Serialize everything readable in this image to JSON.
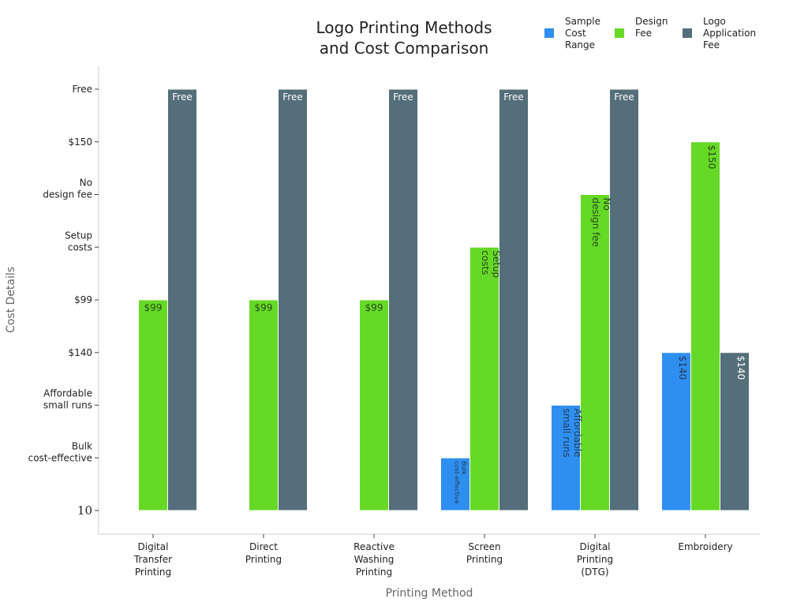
{
  "chart_data": {
    "type": "bar",
    "title": [
      "Logo Printing Methods",
      "and Cost Comparison"
    ],
    "xlabel": "Printing Method",
    "ylabel": "Cost Details",
    "y_categories": [
      "10",
      "Bulk\ncost-effective",
      "Affordable\nsmall runs",
      "$140",
      "$99",
      "Setup\ncosts",
      "No\ndesign fee",
      "$150",
      "Free"
    ],
    "categories": [
      "Digital\nTransfer\nPrinting",
      "Direct\nPrinting",
      "Reactive\nWashing\nPrinting",
      "Screen\nPrinting",
      "Digital\nPrinting\n(DTG)",
      "Embroidery"
    ],
    "series": [
      {
        "name": "Sample\nCost\nRange",
        "color": "#2f8ff0",
        "values": [
          null,
          null,
          null,
          "Bulk\ncost-effective",
          "Affordable\nsmall runs",
          "$140"
        ]
      },
      {
        "name": "Design\nFee",
        "color": "#66d926",
        "values": [
          "$99",
          "$99",
          "$99",
          "Setup\ncosts",
          "No\ndesign fee",
          "$150"
        ]
      },
      {
        "name": "Logo\nApplication\nFee",
        "color": "#546e7a",
        "values": [
          "Free",
          "Free",
          "Free",
          "Free",
          "Free",
          "$140"
        ]
      }
    ],
    "legend_position": "top-right",
    "grid": false
  }
}
